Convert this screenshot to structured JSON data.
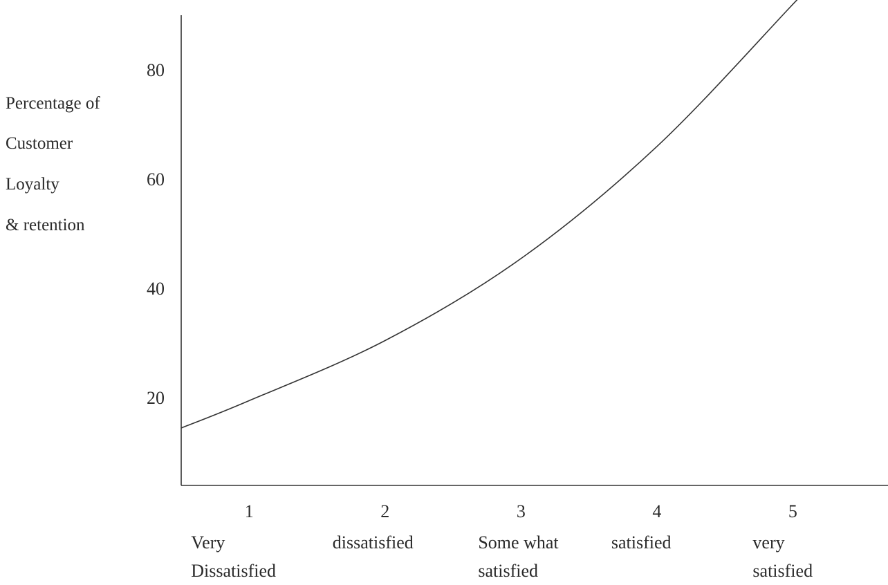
{
  "chart_data": {
    "type": "line",
    "title": "",
    "ylabel": [
      "Percentage of",
      "Customer",
      "Loyalty",
      "& retention"
    ],
    "xlabel": "",
    "y_ticks": [
      20,
      40,
      60,
      80
    ],
    "x_ticks": [
      1,
      2,
      3,
      4,
      5
    ],
    "categories": [
      [
        "Very",
        "Dissatisfied"
      ],
      [
        "dissatisfied"
      ],
      [
        "Some what",
        "satisfied"
      ],
      [
        "satisfied"
      ],
      [
        "very",
        "satisfied"
      ]
    ],
    "xlim": [
      0.5,
      5.7
    ],
    "ylim": [
      6,
      92
    ],
    "series": [
      {
        "name": "",
        "x": [
          0.5,
          1,
          2,
          3,
          4,
          5,
          5.3
        ],
        "y": [
          16.5,
          21.5,
          32.5,
          47.5,
          68,
          94,
          102
        ]
      }
    ],
    "grid": false,
    "legend": "none",
    "line_color": "#333333"
  }
}
